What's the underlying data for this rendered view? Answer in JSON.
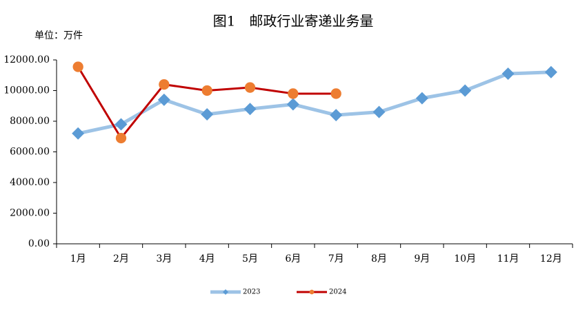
{
  "chart_data": {
    "type": "line",
    "title": "图1　邮政行业寄递业务量",
    "subtitle": "单位：万件",
    "categories": [
      "1月",
      "2月",
      "3月",
      "4月",
      "5月",
      "6月",
      "7月",
      "8月",
      "9月",
      "10月",
      "11月",
      "12月"
    ],
    "series": [
      {
        "name": "2023",
        "color": "#9dc3e6",
        "marker": "diamond",
        "marker_color": "#5b9bd5",
        "values": [
          7200,
          7800,
          9400,
          8450,
          8800,
          9100,
          8400,
          8600,
          9500,
          10000,
          11100,
          11200
        ]
      },
      {
        "name": "2024",
        "color": "#c00000",
        "marker": "circle",
        "marker_color": "#ed7d31",
        "values": [
          11550,
          6900,
          10400,
          10000,
          10200,
          9800,
          9800,
          null,
          null,
          null,
          null,
          null
        ]
      }
    ],
    "ylim": [
      0,
      12000
    ],
    "yticks": [
      {
        "value": 0,
        "label": "0.00"
      },
      {
        "value": 2000,
        "label": "2000.00"
      },
      {
        "value": 4000,
        "label": "4000.00"
      },
      {
        "value": 6000,
        "label": "6000.00"
      },
      {
        "value": 8000,
        "label": "8000.00"
      },
      {
        "value": 10000,
        "label": "10000.00"
      },
      {
        "value": 12000,
        "label": "12000.00"
      }
    ],
    "grid": false,
    "legend": "bottom"
  }
}
